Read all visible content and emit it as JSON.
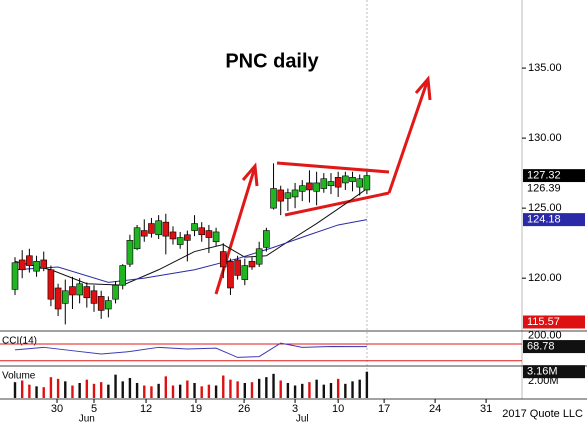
{
  "chart_data": {
    "type": "candlestick",
    "title": "PNC daily",
    "xlim": [
      -2.09,
      70.6
    ],
    "xticks": [
      {
        "value": 5.85,
        "label": "30"
      },
      {
        "value": 11.0,
        "label": "5"
      },
      {
        "value": 18.25,
        "label": "12"
      },
      {
        "value": 25.2,
        "label": "19"
      },
      {
        "value": 31.9,
        "label": "26"
      },
      {
        "value": 39.0,
        "label": "3"
      },
      {
        "value": 45.0,
        "label": "10"
      },
      {
        "value": 51.4,
        "label": "17"
      },
      {
        "value": 58.5,
        "label": "24"
      },
      {
        "value": 65.6,
        "label": "31"
      }
    ],
    "months": [
      {
        "value": 10.0,
        "label": "Jun"
      },
      {
        "value": 40.0,
        "label": "Jul"
      }
    ],
    "ylim": [
      116.3,
      139.86
    ],
    "yticks": [
      {
        "value": 120,
        "label": "120.00"
      },
      {
        "value": 125,
        "label": "125.00"
      },
      {
        "value": 130,
        "label": "130.00"
      },
      {
        "value": 135,
        "label": "135.00"
      }
    ],
    "up_color": "#22b522",
    "down_color": "#dd1111",
    "open": [
      119.2,
      121.3,
      121.6,
      120.5,
      121.3,
      120.6,
      119.3,
      118.2,
      119.4,
      118.8,
      119.4,
      119.1,
      118.7,
      117.8,
      118.5,
      119.5,
      121,
      122.1,
      123.4,
      123.9,
      123.1,
      124,
      123.3,
      122.4,
      123.1,
      123.4,
      123.6,
      123.4,
      122.6,
      121.9,
      121.2,
      121.3,
      119.9,
      121.2,
      121,
      122.2,
      125,
      126.3,
      125.7,
      125.8,
      126.2,
      126.8,
      126.2,
      126.4,
      126.6,
      127.2,
      126.8,
      126.9,
      126.5,
      126.3
    ],
    "high": [
      121.5,
      122,
      122.1,
      121.6,
      121.9,
      120.9,
      119.6,
      119.9,
      120.1,
      120,
      119.7,
      119.5,
      119.1,
      118.7,
      119.8,
      121,
      123.1,
      123.8,
      124.2,
      124.3,
      124.5,
      124.6,
      123.7,
      123.3,
      123.4,
      124.5,
      124,
      123.8,
      123.6,
      122.5,
      121.4,
      121.6,
      121.4,
      121.5,
      122.6,
      123.6,
      128.2,
      126.6,
      126.4,
      126.8,
      127,
      127.7,
      127.6,
      127.5,
      127.5,
      127.6,
      127.6,
      127.6,
      127.4,
      127.6
    ],
    "low": [
      118.8,
      120,
      120.4,
      120.1,
      120.5,
      118,
      117.3,
      116.7,
      117.8,
      118.2,
      117.9,
      117.6,
      117.1,
      117.2,
      118.2,
      119.2,
      120.8,
      122,
      122.6,
      122.9,
      122.8,
      121.7,
      122.4,
      122.1,
      121.2,
      123,
      122.6,
      121.8,
      122.3,
      120,
      118.8,
      119.9,
      119.5,
      120.6,
      120.8,
      121.9,
      124.9,
      124.5,
      124.8,
      125,
      125.5,
      125.4,
      125.2,
      126.1,
      126,
      125.8,
      126.3,
      126.2,
      125.9,
      126
    ],
    "close": [
      121.1,
      120.6,
      120.9,
      121.2,
      120.7,
      118.5,
      117.8,
      119.1,
      118.8,
      119.6,
      118.6,
      118.2,
      117.7,
      118.4,
      119.5,
      120.9,
      122.7,
      123.6,
      123,
      123.2,
      124.1,
      123,
      122.8,
      122.9,
      122.7,
      123.9,
      123.1,
      122.9,
      123.3,
      120.8,
      119.3,
      120.2,
      120.9,
      120.8,
      122.1,
      123.4,
      126.4,
      125.5,
      126.1,
      126.3,
      126.6,
      126.3,
      126.8,
      127.1,
      126.9,
      126.5,
      127.3,
      127.2,
      127.1,
      127.32
    ],
    "moving_averages": [
      {
        "color": "#111111",
        "x": [
          0,
          5,
          10,
          15,
          20,
          25,
          29,
          32,
          35,
          38,
          42,
          46,
          49
        ],
        "values": [
          121.2,
          120.6,
          119.6,
          119.5,
          120.6,
          121.9,
          122.4,
          121.5,
          121.6,
          122.6,
          123.9,
          125.3,
          126.39
        ]
      },
      {
        "color": "#2a2aa8",
        "x": [
          0,
          6,
          13,
          18,
          25,
          31,
          36,
          41,
          45,
          49
        ],
        "values": [
          120.6,
          120.8,
          119.7,
          120,
          120.6,
          121.4,
          122.2,
          123.1,
          123.8,
          124.18
        ]
      }
    ],
    "price_labels": [
      {
        "value": 127.32,
        "label": "127.32",
        "bg": "#000000",
        "fg": "#ffffff"
      },
      {
        "value": 126.39,
        "label": "126.39",
        "bg": "#ffffff",
        "fg": "#000000"
      },
      {
        "value": 124.18,
        "label": "124.18",
        "bg": "#2a2aa8",
        "fg": "#ffffff"
      },
      {
        "value": 115.57,
        "label": "115.57",
        "bg": "#dd1111",
        "fg": "#ffffff"
      }
    ],
    "cci": {
      "title": "CCI(14)",
      "ylim": [
        -150,
        230
      ],
      "yticks": [
        {
          "value": 200,
          "label": "200.00"
        }
      ],
      "levels": [
        100,
        -100
      ],
      "color": "#3a3ab8",
      "x": [
        0,
        4,
        8,
        12,
        16,
        20,
        24,
        28,
        31,
        34,
        37,
        40,
        44,
        49
      ],
      "values": [
        30,
        60,
        20,
        -20,
        10,
        60,
        40,
        50,
        -60,
        -50,
        110,
        60,
        70,
        68.78
      ],
      "last_label": "68.78"
    },
    "volume": {
      "title": "Volume",
      "ylim": [
        0,
        3600000
      ],
      "yticks": [
        {
          "value": 2000000,
          "label": "2.00M"
        }
      ],
      "values": [
        1900000,
        2100000,
        1600000,
        1400000,
        1300000,
        2500000,
        2300000,
        2000000,
        1500000,
        1800000,
        2200000,
        1700000,
        1900000,
        1600000,
        2800000,
        2000000,
        2400000,
        1800000,
        1500000,
        1400000,
        1700000,
        2600000,
        1500000,
        1600000,
        2100000,
        1800000,
        1400000,
        1600000,
        1500000,
        2700000,
        2200000,
        2000000,
        1800000,
        1900000,
        2300000,
        2500000,
        2900000,
        2100000,
        1800000,
        1500000,
        1700000,
        1900000,
        2200000,
        1600000,
        1800000,
        2300000,
        1700000,
        2000000,
        2200000,
        3160000
      ],
      "last_label": "3.16M"
    },
    "source": "2017 Quote LLC"
  }
}
